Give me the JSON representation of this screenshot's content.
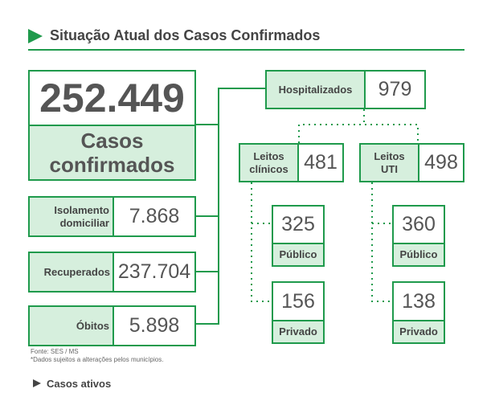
{
  "header": {
    "title": "Situação Atual dos Casos Confirmados"
  },
  "total": {
    "value": "252.449",
    "label": "Casos confirmados"
  },
  "categories": [
    {
      "label": "Isolamento domiciliar",
      "value": "7.868"
    },
    {
      "label": "Recuperados",
      "value": "237.704"
    },
    {
      "label": "Óbitos",
      "value": "5.898"
    }
  ],
  "hospitalized": {
    "label": "Hospitalizados",
    "value": "979",
    "units": [
      {
        "label": "Leitos clínicos",
        "value": "481",
        "sectors": [
          {
            "label": "Público",
            "value": "325"
          },
          {
            "label": "Privado",
            "value": "156"
          }
        ]
      },
      {
        "label": "Leitos UTI",
        "value": "498",
        "sectors": [
          {
            "label": "Público",
            "value": "360"
          },
          {
            "label": "Privado",
            "value": "138"
          }
        ]
      }
    ]
  },
  "footer": {
    "source": "Fonte: SES / MS",
    "note": "*Dados sujeitos a alterações pelos municípios.",
    "section": "Casos ativos"
  }
}
